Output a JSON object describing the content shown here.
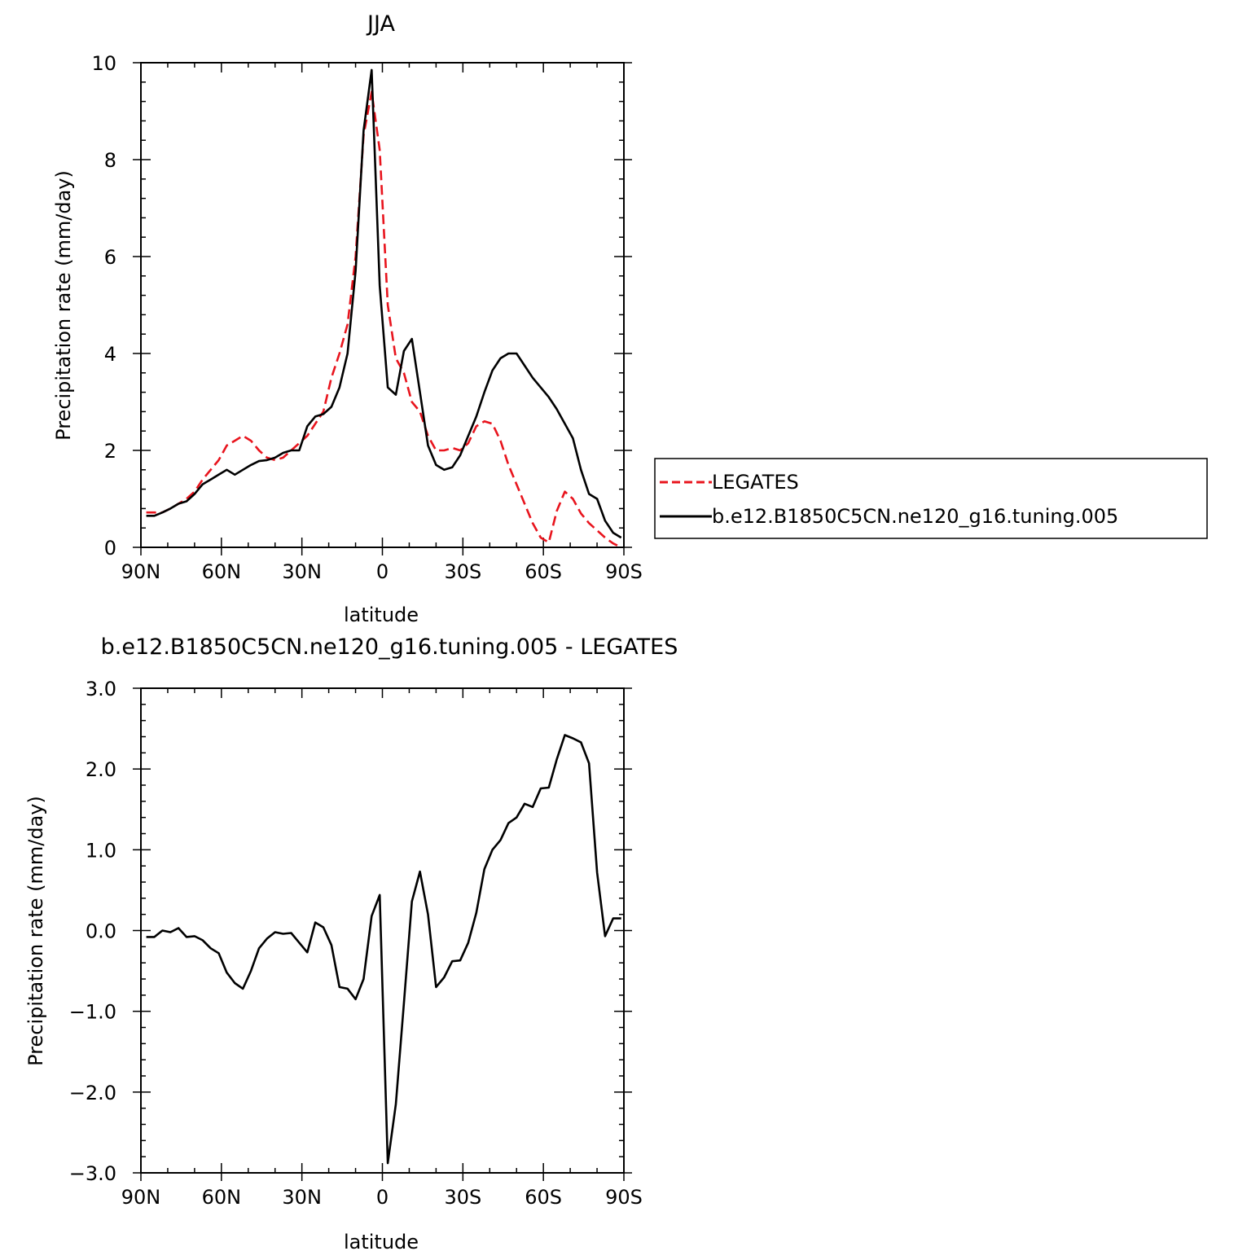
{
  "chart_data": [
    {
      "type": "line",
      "title": "JJA",
      "xlabel": "latitude",
      "ylabel": "Precipitation rate (mm/day)",
      "xlim": [
        -90,
        90
      ],
      "ylim": [
        0,
        10
      ],
      "xticks": [
        {
          "value": -90,
          "label": "90N"
        },
        {
          "value": -60,
          "label": "60N"
        },
        {
          "value": -30,
          "label": "30N"
        },
        {
          "value": 0,
          "label": "0"
        },
        {
          "value": 30,
          "label": "30S"
        },
        {
          "value": 60,
          "label": "60S"
        },
        {
          "value": 90,
          "label": "90S"
        }
      ],
      "yticks": [
        {
          "value": 0,
          "label": "0"
        },
        {
          "value": 2,
          "label": "2"
        },
        {
          "value": 4,
          "label": "4"
        },
        {
          "value": 6,
          "label": "6"
        },
        {
          "value": 8,
          "label": "8"
        },
        {
          "value": 10,
          "label": "10"
        }
      ],
      "legend": "right",
      "series": [
        {
          "name": "LEGATES",
          "color": "#e8141d",
          "dash": "dashed",
          "x": [
            -88,
            -85,
            -82,
            -79,
            -76,
            -73,
            -70,
            -67,
            -64,
            -61,
            -58,
            -55,
            -52,
            -49,
            -46,
            -43,
            -40,
            -37,
            -34,
            -31,
            -28,
            -25,
            -22,
            -19,
            -16,
            -13,
            -10,
            -7,
            -4,
            -1,
            2,
            5,
            8,
            11,
            14,
            17,
            20,
            23,
            26,
            29,
            32,
            35,
            38,
            41,
            44,
            47,
            50,
            53,
            56,
            59,
            62,
            65,
            68,
            71,
            74,
            77,
            80,
            83,
            86,
            89
          ],
          "values": [
            0.72,
            0.72,
            0.72,
            0.8,
            0.9,
            1.0,
            1.15,
            1.4,
            1.6,
            1.8,
            2.1,
            2.2,
            2.3,
            2.2,
            2.0,
            1.85,
            1.8,
            1.85,
            2.0,
            2.15,
            2.3,
            2.55,
            2.8,
            3.5,
            4.0,
            4.6,
            6.0,
            8.5,
            9.4,
            8.2,
            5.0,
            3.9,
            3.6,
            3.0,
            2.8,
            2.3,
            2.0,
            2.0,
            2.05,
            2.0,
            2.15,
            2.5,
            2.6,
            2.55,
            2.2,
            1.7,
            1.3,
            0.9,
            0.5,
            0.2,
            0.1,
            0.75,
            1.15,
            1.0,
            0.7,
            0.5,
            0.35,
            0.2,
            0.08,
            0.0
          ]
        },
        {
          "name": "b.e12.B1850C5CN.ne120_g16.tuning.005",
          "color": "#000000",
          "dash": "solid",
          "x": [
            -88,
            -85,
            -82,
            -79,
            -76,
            -73,
            -70,
            -67,
            -64,
            -61,
            -58,
            -55,
            -52,
            -49,
            -46,
            -43,
            -40,
            -37,
            -34,
            -31,
            -28,
            -25,
            -22,
            -19,
            -16,
            -13,
            -10,
            -7,
            -4,
            -1,
            2,
            5,
            8,
            11,
            14,
            17,
            20,
            23,
            26,
            29,
            32,
            35,
            38,
            41,
            44,
            47,
            50,
            53,
            56,
            59,
            62,
            65,
            68,
            71,
            74,
            77,
            80,
            83,
            86,
            89
          ],
          "values": [
            0.65,
            0.65,
            0.72,
            0.8,
            0.9,
            0.95,
            1.1,
            1.3,
            1.4,
            1.5,
            1.6,
            1.5,
            1.6,
            1.7,
            1.78,
            1.8,
            1.85,
            1.95,
            2.0,
            2.0,
            2.5,
            2.7,
            2.75,
            2.9,
            3.3,
            4.0,
            5.7,
            8.6,
            9.85,
            5.4,
            3.3,
            3.15,
            4.05,
            4.3,
            3.2,
            2.1,
            1.7,
            1.6,
            1.65,
            1.9,
            2.3,
            2.7,
            3.2,
            3.65,
            3.9,
            4.0,
            4.0,
            3.75,
            3.5,
            3.3,
            3.1,
            2.85,
            2.55,
            2.25,
            1.6,
            1.1,
            1.0,
            0.55,
            0.3,
            0.2
          ]
        }
      ]
    },
    {
      "type": "line",
      "title": "b.e12.B1850C5CN.ne120_g16.tuning.005 - LEGATES",
      "xlabel": "latitude",
      "ylabel": "Precipitation rate (mm/day)",
      "xlim": [
        -90,
        90
      ],
      "ylim": [
        -3,
        3
      ],
      "xticks": [
        {
          "value": -90,
          "label": "90N"
        },
        {
          "value": -60,
          "label": "60N"
        },
        {
          "value": -30,
          "label": "30N"
        },
        {
          "value": 0,
          "label": "0"
        },
        {
          "value": 30,
          "label": "30S"
        },
        {
          "value": 60,
          "label": "60S"
        },
        {
          "value": 90,
          "label": "90S"
        }
      ],
      "yticks": [
        {
          "value": -3,
          "label": "−3.0"
        },
        {
          "value": -2,
          "label": "−2.0"
        },
        {
          "value": -1,
          "label": "−1.0"
        },
        {
          "value": 0,
          "label": "0.0"
        },
        {
          "value": 1,
          "label": "1.0"
        },
        {
          "value": 2,
          "label": "2.0"
        },
        {
          "value": 3,
          "label": "3.0"
        }
      ],
      "series": [
        {
          "color": "#000000",
          "dash": "solid",
          "x": [
            -88,
            -85,
            -82,
            -79,
            -76,
            -73,
            -70,
            -67,
            -64,
            -61,
            -58,
            -55,
            -52,
            -49,
            -46,
            -43,
            -40,
            -37,
            -34,
            -31,
            -28,
            -25,
            -22,
            -19,
            -16,
            -13,
            -10,
            -7,
            -4,
            -1,
            2,
            5,
            8,
            11,
            14,
            17,
            20,
            23,
            26,
            29,
            32,
            35,
            38,
            41,
            44,
            47,
            50,
            53,
            56,
            59,
            62,
            65,
            68,
            71,
            74,
            77,
            80,
            83,
            86,
            89
          ],
          "values": [
            -0.08,
            -0.08,
            0.0,
            -0.02,
            0.03,
            -0.08,
            -0.07,
            -0.12,
            -0.22,
            -0.28,
            -0.52,
            -0.65,
            -0.72,
            -0.5,
            -0.22,
            -0.1,
            -0.02,
            -0.04,
            -0.03,
            -0.15,
            -0.27,
            0.1,
            0.04,
            -0.18,
            -0.7,
            -0.72,
            -0.85,
            -0.6,
            0.18,
            0.44,
            -2.88,
            -2.15,
            -0.9,
            0.36,
            0.73,
            0.2,
            -0.7,
            -0.58,
            -0.38,
            -0.37,
            -0.15,
            0.22,
            0.76,
            1.0,
            1.12,
            1.33,
            1.4,
            1.57,
            1.53,
            1.76,
            1.77,
            2.12,
            2.42,
            2.38,
            2.33,
            2.07,
            0.72,
            -0.07,
            0.15,
            0.15
          ]
        }
      ]
    }
  ]
}
